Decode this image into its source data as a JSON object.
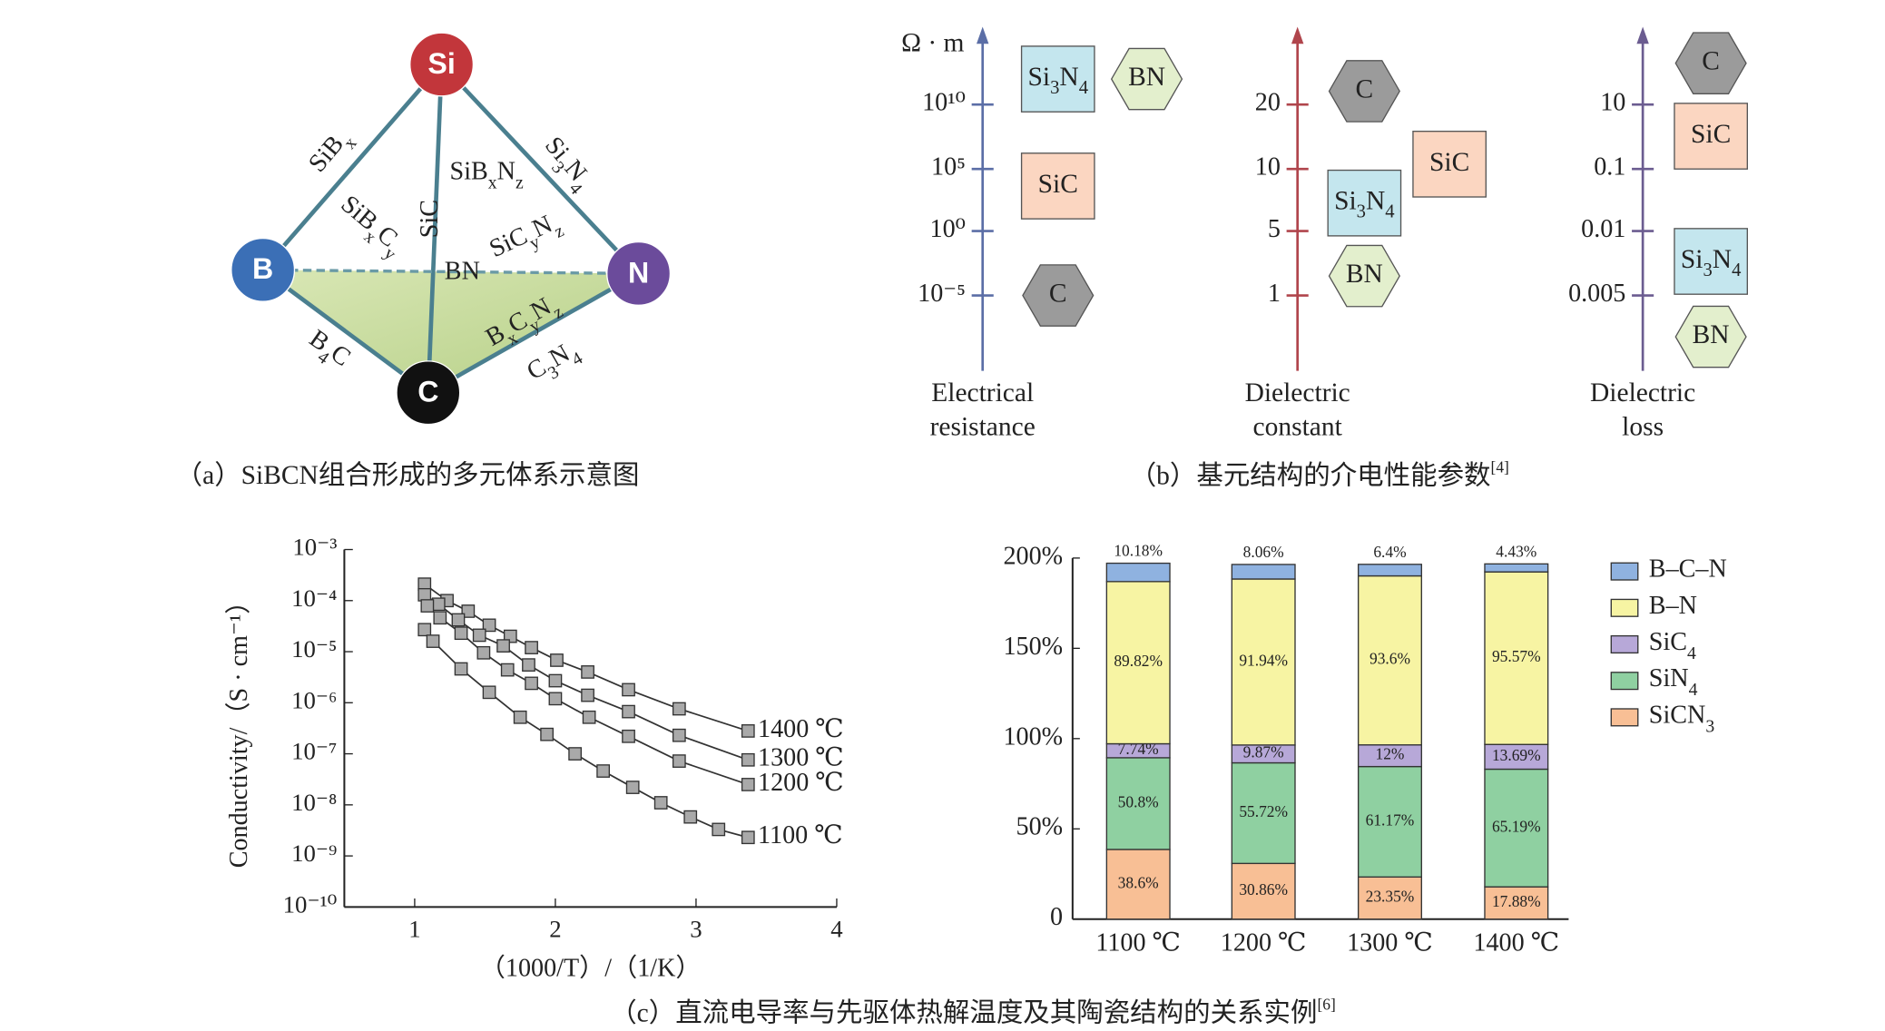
{
  "diagram": {
    "nodes": [
      {
        "label": "Si"
      },
      {
        "label": "B"
      },
      {
        "label": "N"
      },
      {
        "label": "C"
      }
    ],
    "edge_labels": [
      "SiBx",
      "Si3N4",
      "SiBxNz",
      "SiBxCy",
      "SiC",
      "BN",
      "SiCyNz",
      "BxCyNz",
      "B4C",
      "C3N4"
    ],
    "caption": "（a）SiBCN组合形成的多元体系示意图"
  },
  "properties": {
    "unit": "Ω · m",
    "axes": [
      {
        "label": [
          "Electrical",
          "resistance"
        ],
        "ticks": [
          "10¹⁰",
          "10⁵",
          "10⁰",
          "10⁻⁵"
        ],
        "items": [
          "Si3N4",
          "BN",
          "SiC",
          "C"
        ]
      },
      {
        "label": [
          "Dielectric",
          "constant"
        ],
        "ticks": [
          "20",
          "10",
          "5",
          "1"
        ],
        "items": [
          "C",
          "SiC",
          "Si3N4",
          "BN"
        ]
      },
      {
        "label": [
          "Dielectric",
          "loss"
        ],
        "ticks": [
          "10",
          "0.1",
          "0.01",
          "0.005"
        ],
        "items": [
          "C",
          "SiC",
          "Si3N4",
          "BN"
        ]
      }
    ],
    "caption": "（b）基元结构的介电性能参数",
    "caption_ref": "[4]"
  },
  "chart_data": [
    {
      "type": "line",
      "xlabel": "（1000/T）/（1/K）",
      "ylabel": "Conductivity/（S · cm⁻¹）",
      "log_y": true,
      "xlim": [
        0.5,
        4
      ],
      "xticks": [
        1,
        2,
        3,
        4
      ],
      "ylim": [
        1e-10,
        0.001
      ],
      "yticks": [
        {
          "value": 1e-10,
          "label": "10⁻¹⁰"
        },
        {
          "value": 1e-09,
          "label": "10⁻⁹"
        },
        {
          "value": 1e-08,
          "label": "10⁻⁸"
        },
        {
          "value": 1e-07,
          "label": "10⁻⁷"
        },
        {
          "value": 1e-06,
          "label": "10⁻⁶"
        },
        {
          "value": 1e-05,
          "label": "10⁻⁵"
        },
        {
          "value": 0.0001,
          "label": "10⁻⁴"
        },
        {
          "value": 0.001,
          "label": "10⁻³"
        }
      ],
      "series": [
        {
          "name": "1400 ℃",
          "color": "#333333",
          "x": [
            1.07,
            1.23,
            1.38,
            1.53,
            1.68,
            1.83,
            2.01,
            2.23,
            2.52,
            2.88,
            3.37
          ],
          "values": [
            0.00021,
            0.0001,
            6.2e-05,
            3.3e-05,
            2e-05,
            1.2e-05,
            6.8e-06,
            4e-06,
            1.8e-06,
            7.6e-07,
            2.8e-07
          ]
        },
        {
          "name": "1300 ℃",
          "color": "#333333",
          "x": [
            1.07,
            1.17,
            1.31,
            1.46,
            1.63,
            1.81,
            2.0,
            2.23,
            2.52,
            2.88,
            3.37
          ],
          "values": [
            0.00013,
            8.5e-05,
            4.2e-05,
            2.1e-05,
            1.3e-05,
            5.5e-06,
            2.7e-06,
            1.4e-06,
            6.7e-07,
            2.3e-07,
            7.6e-08
          ]
        },
        {
          "name": "1200 ℃",
          "color": "#333333",
          "x": [
            1.09,
            1.18,
            1.33,
            1.49,
            1.66,
            1.83,
            2.0,
            2.24,
            2.52,
            2.88,
            3.37
          ],
          "values": [
            7.9e-05,
            4.6e-05,
            2.3e-05,
            9.5e-06,
            4.4e-06,
            2.4e-06,
            1.2e-06,
            5.2e-07,
            2.2e-07,
            7.2e-08,
            2.5e-08
          ]
        },
        {
          "name": "1100 ℃",
          "color": "#333333",
          "x": [
            1.07,
            1.13,
            1.33,
            1.53,
            1.75,
            1.94,
            2.14,
            2.34,
            2.55,
            2.75,
            2.96,
            3.16,
            3.37
          ],
          "values": [
            2.7e-05,
            1.6e-05,
            4.6e-06,
            1.6e-06,
            5.2e-07,
            2.4e-07,
            1e-07,
            4.6e-08,
            2.2e-08,
            1.1e-08,
            5.8e-09,
            3.3e-09,
            2.3e-09
          ]
        }
      ]
    },
    {
      "type": "stacked_bar",
      "categories": [
        "1100 ℃",
        "1200 ℃",
        "1300 ℃",
        "1400 ℃"
      ],
      "ylim": [
        0,
        200
      ],
      "yticks": [
        0,
        {
          "value": 50,
          "label": "50%"
        },
        {
          "value": 100,
          "label": "100%"
        },
        {
          "value": 150,
          "label": "150%"
        },
        {
          "value": 200,
          "label": "200%"
        }
      ],
      "series": [
        {
          "name": "SiCN3",
          "color": "#f8bf95",
          "values": [
            38.6,
            30.86,
            23.35,
            17.88
          ],
          "value_labels": [
            "38.6%",
            "30.86%",
            "23.35%",
            "17.88%"
          ]
        },
        {
          "name": "SiN4",
          "color": "#8fd0a1",
          "values": [
            50.8,
            55.72,
            61.17,
            65.19
          ],
          "value_labels": [
            "50.8%",
            "55.72%",
            "61.17%",
            "65.19%"
          ]
        },
        {
          "name": "SiC4",
          "color": "#b7a8d8",
          "values": [
            7.74,
            9.87,
            12,
            13.69
          ],
          "value_labels": [
            "7.74%",
            "9.87%",
            "12%",
            "13.69%"
          ]
        },
        {
          "name": "B–N",
          "color": "#f7f4a3",
          "values": [
            89.82,
            91.94,
            93.6,
            95.57
          ],
          "value_labels": [
            "89.82%",
            "91.94%",
            "93.6%",
            "95.57%"
          ]
        },
        {
          "name": "B–C–N",
          "color": "#8fb2e0",
          "values": [
            10.18,
            8.06,
            6.4,
            4.43
          ],
          "value_labels": [
            "10.18%",
            "8.06%",
            "6.4%",
            "4.43%"
          ]
        }
      ],
      "legend": "right"
    }
  ],
  "caption": "（c）直流电导率与先驱体热解温度及其陶瓷结构的关系实例",
  "caption_ref": "[6]"
}
